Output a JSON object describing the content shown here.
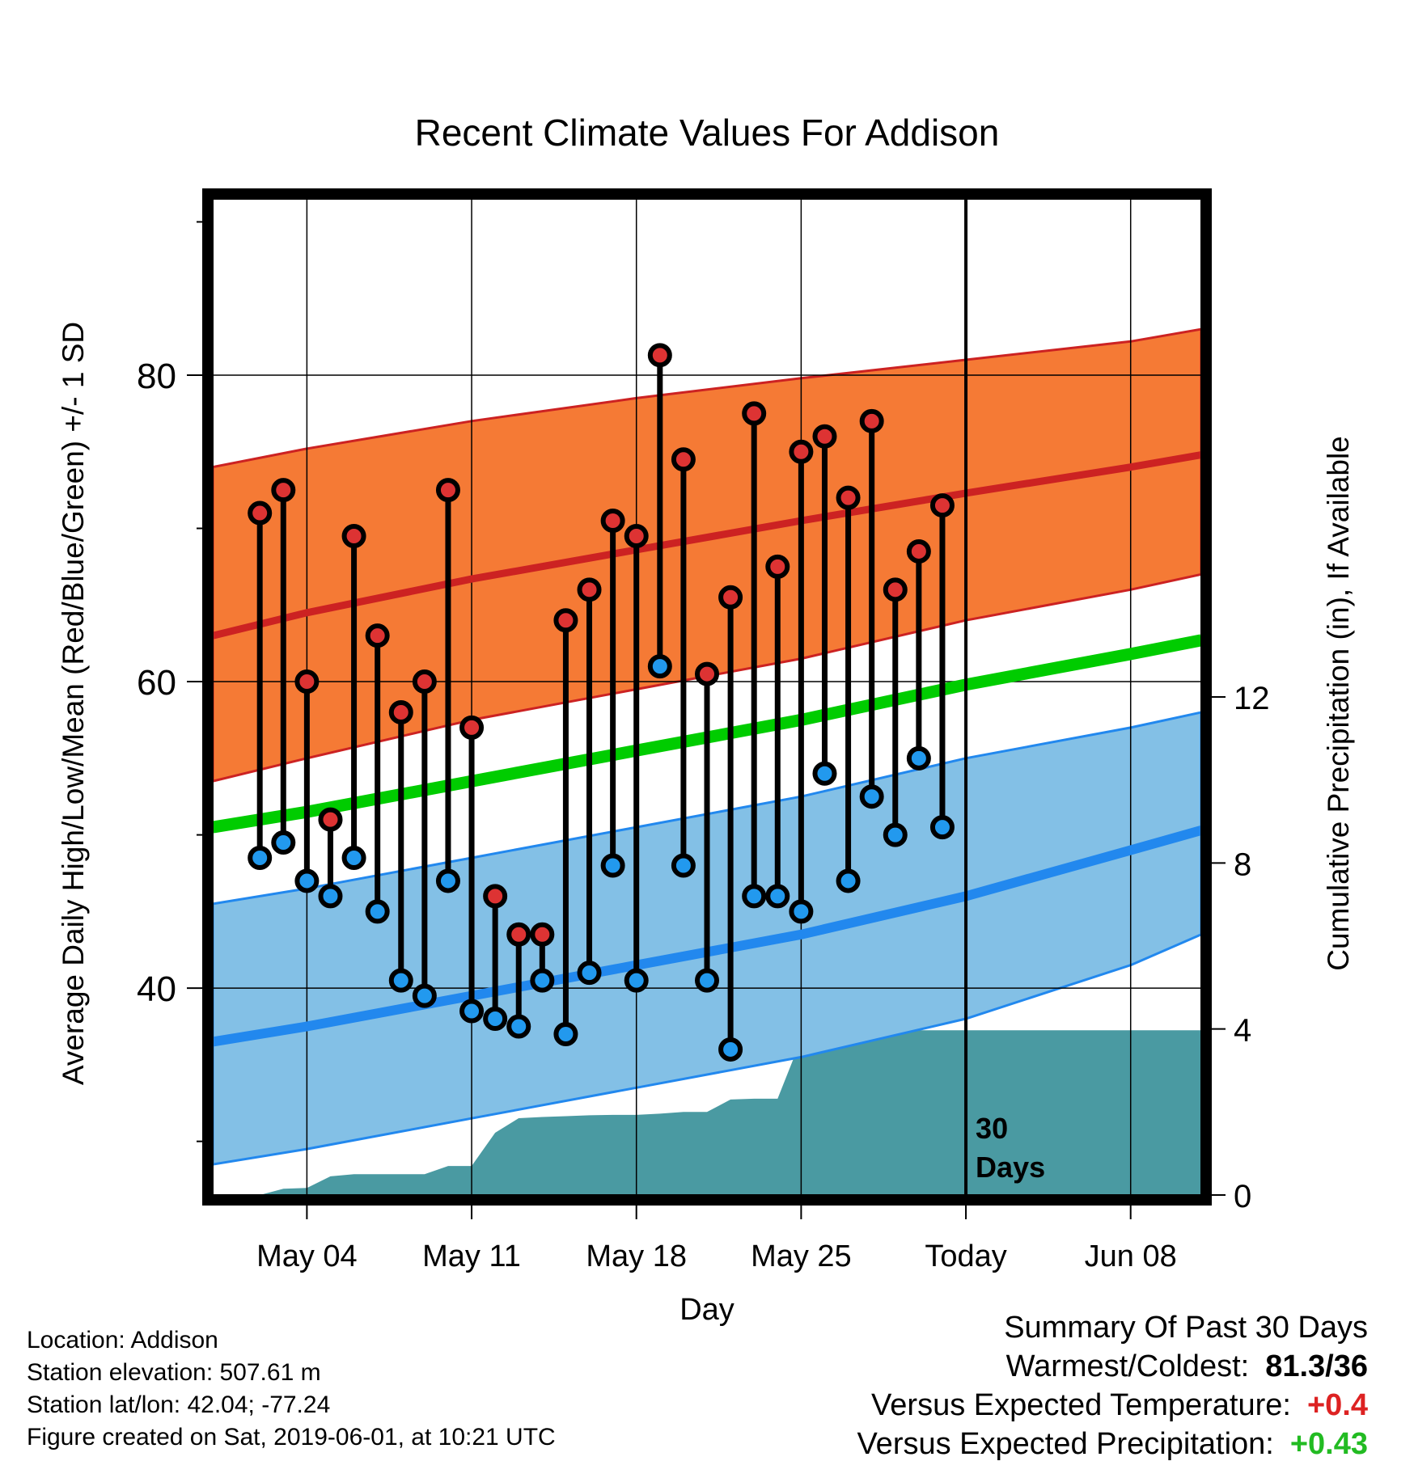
{
  "chart_data": {
    "type": "line",
    "title": "Recent Climate Values For Addison",
    "xlabel": "Day",
    "ylabel_left": "Average Daily High/Low/Mean (Red/Blue/Green) +/- 1 SD",
    "ylabel_right": "Cumulative Precipitation (in), If Available",
    "x_range": [
      "2019-04-30",
      "2019-06-11"
    ],
    "y_left_range": [
      26.5,
      91.5
    ],
    "y_right_range": [
      0,
      24
    ],
    "x_ticks": [
      {
        "date": "2019-05-04",
        "label": "May 04"
      },
      {
        "date": "2019-05-11",
        "label": "May 11"
      },
      {
        "date": "2019-05-18",
        "label": "May 18"
      },
      {
        "date": "2019-05-25",
        "label": "May 25"
      },
      {
        "date": "2019-06-01",
        "label": "Today"
      },
      {
        "date": "2019-06-08",
        "label": "Jun 08"
      }
    ],
    "y_left_ticks": [
      40,
      60,
      80
    ],
    "y_right_ticks": [
      0,
      4,
      8,
      12
    ],
    "today_marker": {
      "date": "2019-06-01",
      "label_line1": "30",
      "label_line2": "Days"
    },
    "series": [
      {
        "name": "High",
        "color": "#cc2222",
        "dates": [
          "2019-05-02",
          "2019-05-03",
          "2019-05-04",
          "2019-05-05",
          "2019-05-06",
          "2019-05-07",
          "2019-05-08",
          "2019-05-09",
          "2019-05-10",
          "2019-05-11",
          "2019-05-12",
          "2019-05-13",
          "2019-05-14",
          "2019-05-15",
          "2019-05-16",
          "2019-05-17",
          "2019-05-18",
          "2019-05-19",
          "2019-05-20",
          "2019-05-21",
          "2019-05-22",
          "2019-05-23",
          "2019-05-24",
          "2019-05-25",
          "2019-05-26",
          "2019-05-27",
          "2019-05-28",
          "2019-05-29",
          "2019-05-30",
          "2019-05-31"
        ],
        "values": [
          71,
          72.5,
          60,
          51,
          69.5,
          63,
          58,
          60,
          72.5,
          57,
          46,
          43.5,
          43.5,
          64,
          66,
          70.5,
          69.5,
          81.3,
          74.5,
          60.5,
          65.5,
          77.5,
          67.5,
          75,
          76,
          72,
          77,
          66,
          68.5,
          71.5
        ]
      },
      {
        "name": "Low",
        "color": "#2288ee",
        "dates": [
          "2019-05-02",
          "2019-05-03",
          "2019-05-04",
          "2019-05-05",
          "2019-05-06",
          "2019-05-07",
          "2019-05-08",
          "2019-05-09",
          "2019-05-10",
          "2019-05-11",
          "2019-05-12",
          "2019-05-13",
          "2019-05-14",
          "2019-05-15",
          "2019-05-16",
          "2019-05-17",
          "2019-05-18",
          "2019-05-19",
          "2019-05-20",
          "2019-05-21",
          "2019-05-22",
          "2019-05-23",
          "2019-05-24",
          "2019-05-25",
          "2019-05-26",
          "2019-05-27",
          "2019-05-28",
          "2019-05-29",
          "2019-05-30",
          "2019-05-31"
        ],
        "values": [
          48.5,
          49.5,
          47,
          46,
          48.5,
          45,
          40.5,
          39.5,
          47,
          38.5,
          38,
          37.5,
          40.5,
          37,
          41,
          48,
          40.5,
          61,
          48,
          40.5,
          36,
          46,
          46,
          45,
          54,
          47,
          52.5,
          50,
          55,
          50.5
        ]
      },
      {
        "name": "Normal High",
        "color": "#cc2222",
        "dates": [
          "2019-04-30",
          "2019-05-04",
          "2019-05-11",
          "2019-05-18",
          "2019-05-25",
          "2019-06-01",
          "2019-06-08",
          "2019-06-11"
        ],
        "values": [
          63,
          64.5,
          66.7,
          68.6,
          70.5,
          72.3,
          74,
          74.8
        ],
        "sd_lower": [
          53.5,
          55,
          57.5,
          59.5,
          61.5,
          64,
          66,
          67
        ],
        "sd_upper": [
          74,
          75.2,
          77,
          78.5,
          79.8,
          81,
          82.2,
          83
        ]
      },
      {
        "name": "Normal Low",
        "color": "#2288ee",
        "dates": [
          "2019-04-30",
          "2019-05-04",
          "2019-05-11",
          "2019-05-18",
          "2019-05-25",
          "2019-06-01",
          "2019-06-08",
          "2019-06-11"
        ],
        "values": [
          36.5,
          37.5,
          39.5,
          41.5,
          43.5,
          46,
          49,
          50.3
        ],
        "sd_lower": [
          28.5,
          29.5,
          31.5,
          33.5,
          35.5,
          38,
          41.5,
          43.5
        ],
        "sd_upper": [
          45.5,
          46.5,
          48.5,
          50.5,
          52.5,
          55,
          57,
          58
        ]
      },
      {
        "name": "Normal Mean",
        "color": "#00cc00",
        "dates": [
          "2019-04-30",
          "2019-05-04",
          "2019-05-11",
          "2019-05-18",
          "2019-05-25",
          "2019-06-01",
          "2019-06-08",
          "2019-06-11"
        ],
        "values": [
          50.5,
          51.5,
          53.5,
          55.5,
          57.5,
          59.8,
          61.8,
          62.7
        ]
      },
      {
        "name": "Cumulative Precipitation",
        "color": "#4a9aa2",
        "dates": [
          "2019-05-01",
          "2019-05-02",
          "2019-05-03",
          "2019-05-04",
          "2019-05-05",
          "2019-05-06",
          "2019-05-07",
          "2019-05-08",
          "2019-05-09",
          "2019-05-10",
          "2019-05-11",
          "2019-05-12",
          "2019-05-13",
          "2019-05-14",
          "2019-05-15",
          "2019-05-16",
          "2019-05-17",
          "2019-05-18",
          "2019-05-19",
          "2019-05-20",
          "2019-05-21",
          "2019-05-22",
          "2019-05-23",
          "2019-05-24",
          "2019-05-25",
          "2019-05-26",
          "2019-05-27",
          "2019-05-28",
          "2019-05-29",
          "2019-05-30",
          "2019-05-31",
          "2019-06-11"
        ],
        "values": [
          0,
          0,
          0.15,
          0.17,
          0.45,
          0.5,
          0.5,
          0.5,
          0.5,
          0.7,
          0.7,
          1.5,
          1.85,
          1.88,
          1.9,
          1.92,
          1.93,
          1.93,
          1.96,
          2.0,
          2.0,
          2.3,
          2.32,
          2.32,
          3.75,
          3.75,
          3.75,
          3.88,
          3.95,
          3.97,
          3.97,
          3.97
        ]
      }
    ]
  },
  "info": {
    "location": "Location: Addison",
    "elevation": "Station elevation: 507.61 m",
    "latlon": "Station lat/lon: 42.04; -77.24",
    "created": "Figure created on Sat, 2019-06-01, at 10:21 UTC"
  },
  "summary": {
    "heading": "Summary Of Past 30 Days",
    "warmest_label": "Warmest/Coldest:",
    "warmest_value": "81.3/36",
    "temp_label": "Versus Expected Temperature:",
    "temp_value": "+0.4",
    "temp_color": "#dd2222",
    "precip_label": "Versus Expected Precipitation:",
    "precip_value": "+0.43",
    "precip_color": "#22bb22"
  }
}
